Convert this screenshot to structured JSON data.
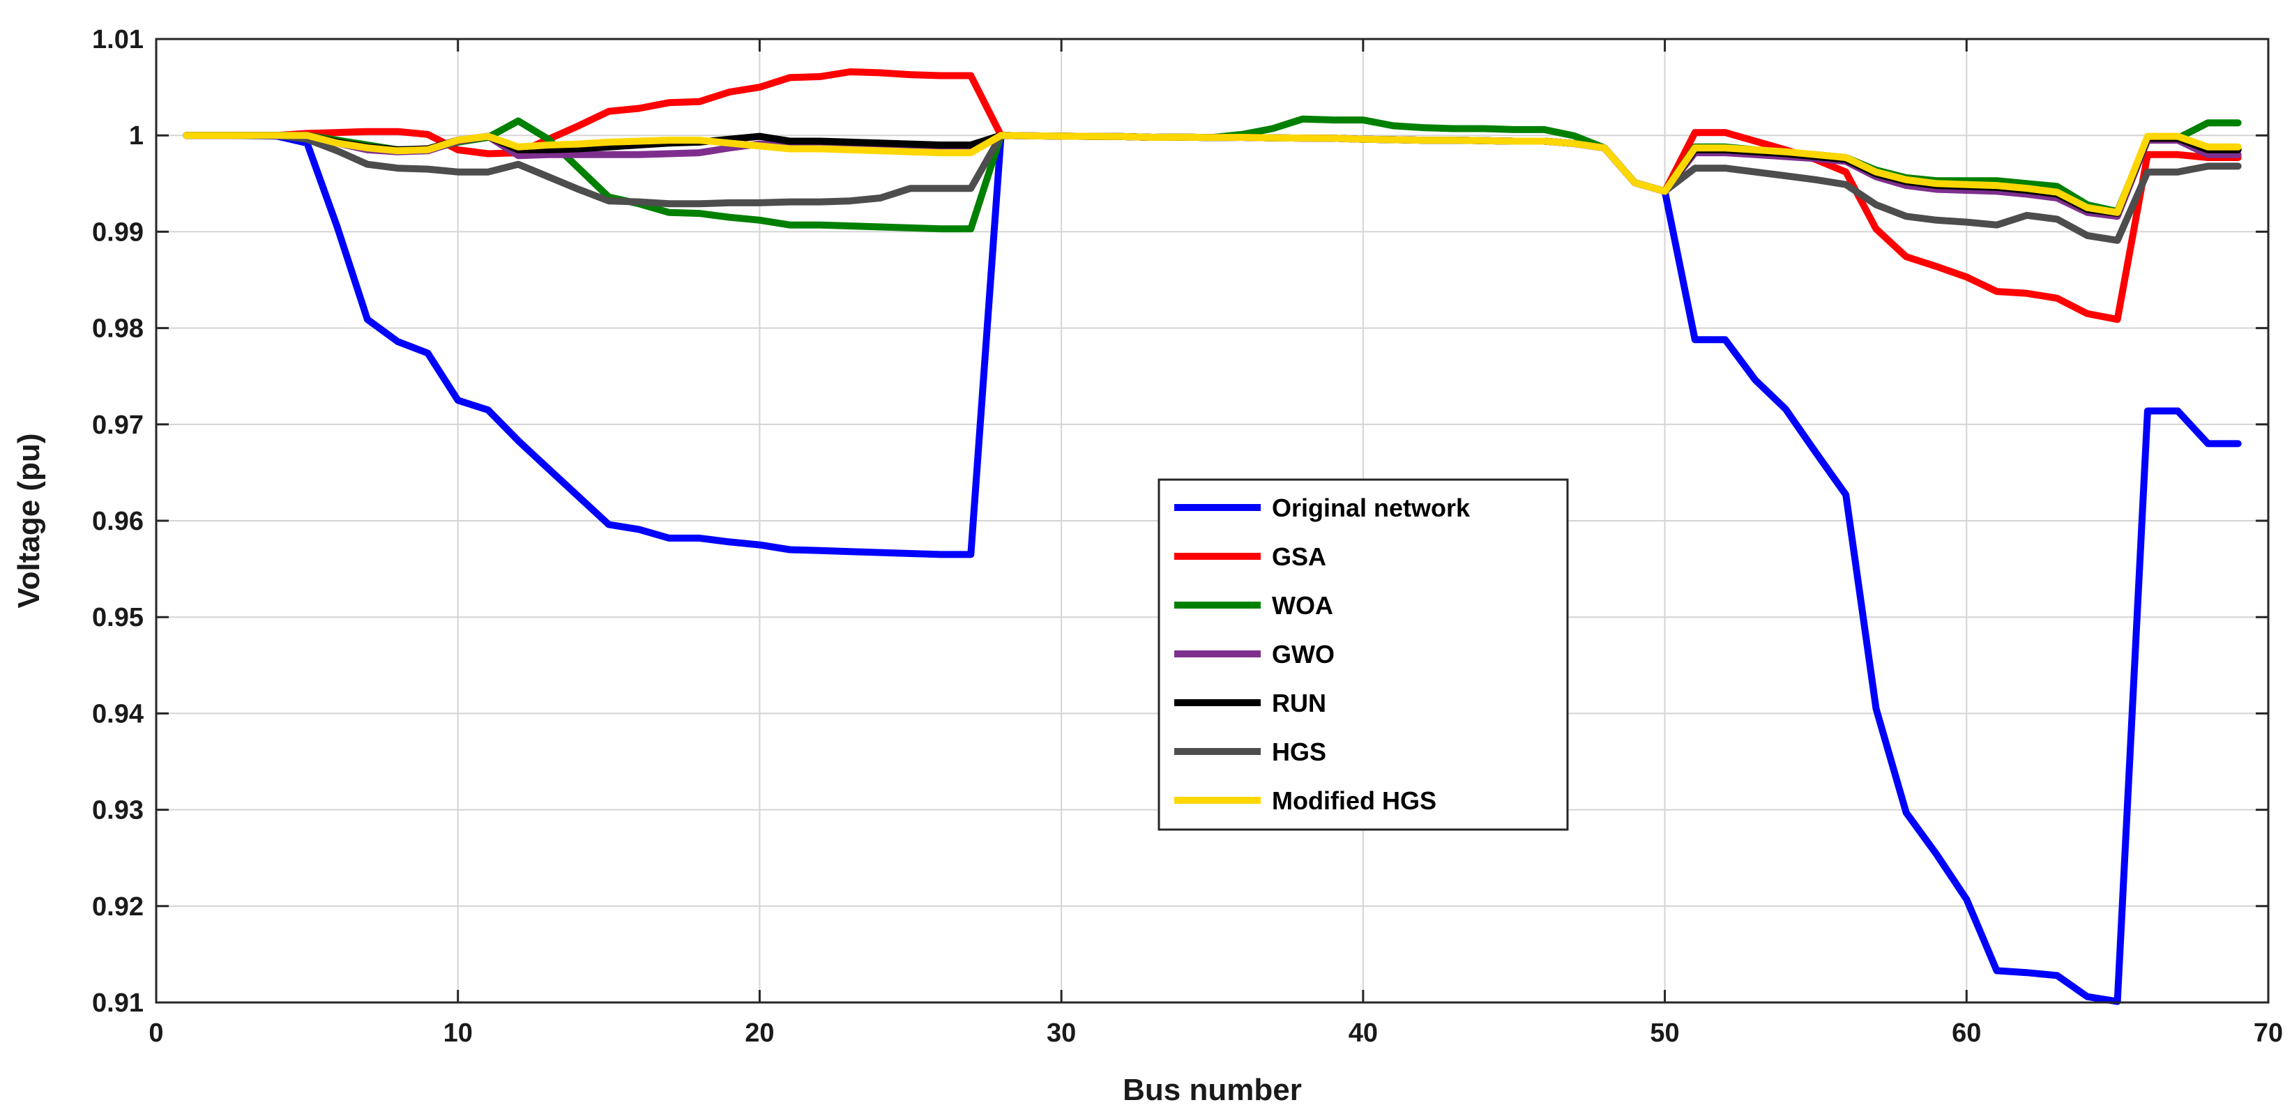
{
  "chart_data": {
    "type": "line",
    "title": "",
    "xlabel": "Bus number",
    "ylabel": "Voltage (pu)",
    "xlim": [
      0,
      70
    ],
    "ylim": [
      0.91,
      1.01
    ],
    "xticks": [
      0,
      10,
      20,
      30,
      40,
      50,
      60,
      70
    ],
    "yticks": [
      0.91,
      0.92,
      0.93,
      0.94,
      0.95,
      0.96,
      0.97,
      0.98,
      0.99,
      1.0,
      1.01
    ],
    "xtick_labels": [
      "0",
      "10",
      "20",
      "30",
      "40",
      "50",
      "60",
      "70"
    ],
    "ytick_labels": [
      "0.91",
      "0.92",
      "0.93",
      "0.94",
      "0.95",
      "0.96",
      "0.97",
      "0.98",
      "0.99",
      "1",
      "1.01"
    ],
    "grid": true,
    "legend_position": "center-right",
    "x": [
      1,
      2,
      3,
      4,
      5,
      6,
      7,
      8,
      9,
      10,
      11,
      12,
      13,
      14,
      15,
      16,
      17,
      18,
      19,
      20,
      21,
      22,
      23,
      24,
      25,
      26,
      27,
      28,
      29,
      30,
      31,
      32,
      33,
      34,
      35,
      36,
      37,
      38,
      39,
      40,
      41,
      42,
      43,
      44,
      45,
      46,
      47,
      48,
      49,
      50,
      51,
      52,
      53,
      54,
      55,
      56,
      57,
      58,
      59,
      60,
      61,
      62,
      63,
      64,
      65,
      66,
      67,
      68,
      69
    ],
    "series": [
      {
        "name": "Original network",
        "color": "#0000FF",
        "values": [
          1.0,
          1.0,
          0.99997,
          0.99993,
          0.9992,
          0.9905,
          0.9809,
          0.9786,
          0.9774,
          0.9725,
          0.9715,
          0.9683,
          0.9654,
          0.9625,
          0.9596,
          0.9591,
          0.9582,
          0.9582,
          0.9578,
          0.9575,
          0.957,
          0.9569,
          0.9568,
          0.9567,
          0.9566,
          0.9565,
          0.9565,
          0.99998,
          0.99995,
          0.99992,
          0.9999,
          0.99988,
          0.9998,
          0.99982,
          0.99978,
          0.9998,
          0.99975,
          0.99972,
          0.9997,
          0.9996,
          0.99955,
          0.9995,
          0.9995,
          0.99945,
          0.9994,
          0.9994,
          0.99915,
          0.9987,
          0.9951,
          0.9942,
          0.9788,
          0.9788,
          0.9746,
          0.9716,
          0.9671,
          0.9627,
          0.9405,
          0.9297,
          0.9254,
          0.9207,
          0.9133,
          0.9131,
          0.9128,
          0.9106,
          0.9101,
          0.9714,
          0.9714,
          0.968,
          0.968
        ]
      },
      {
        "name": "GSA",
        "color": "#FF0000",
        "values": [
          1.0,
          1.0,
          1.0,
          1.0,
          1.0002,
          1.0003,
          1.0004,
          1.0004,
          1.0001,
          0.9985,
          0.9981,
          0.9982,
          0.9996,
          1.001,
          1.0025,
          1.0028,
          1.0034,
          1.0035,
          1.0045,
          1.005,
          1.006,
          1.0061,
          1.0066,
          1.0065,
          1.0063,
          1.0062,
          1.0062,
          1.0,
          0.99995,
          0.99992,
          0.9999,
          0.99988,
          0.9998,
          0.99982,
          0.99978,
          0.9998,
          0.99975,
          0.99972,
          0.9997,
          0.9996,
          0.99955,
          0.9995,
          0.9995,
          0.99945,
          0.9994,
          0.9994,
          0.99915,
          0.9987,
          0.9951,
          0.9942,
          1.0003,
          1.0003,
          0.9994,
          0.9985,
          0.9975,
          0.9962,
          0.9903,
          0.9874,
          0.9864,
          0.9853,
          0.9838,
          0.9836,
          0.9831,
          0.9815,
          0.9809,
          0.998,
          0.998,
          0.9977,
          0.9977
        ]
      },
      {
        "name": "WOA",
        "color": "#008000",
        "values": [
          1.0,
          1.0,
          1.0,
          1.0,
          1.0,
          0.9995,
          0.999,
          0.9985,
          0.9985,
          0.9993,
          0.9998,
          1.0015,
          0.9996,
          0.9966,
          0.9936,
          0.9929,
          0.992,
          0.9919,
          0.9915,
          0.9912,
          0.9907,
          0.9907,
          0.9906,
          0.9905,
          0.9904,
          0.9903,
          0.9903,
          1.0,
          0.99995,
          0.99992,
          0.9999,
          0.99988,
          0.9998,
          0.99982,
          0.99978,
          1.0001,
          1.0007,
          1.0017,
          1.0016,
          1.0016,
          1.001,
          1.0008,
          1.0007,
          1.0007,
          1.0006,
          1.0006,
          0.99995,
          0.9987,
          0.9951,
          0.9942,
          0.9988,
          0.9988,
          0.9985,
          0.9982,
          0.998,
          0.9977,
          0.9964,
          0.9956,
          0.9953,
          0.9953,
          0.9953,
          0.995,
          0.9947,
          0.9928,
          0.9921,
          0.9997,
          0.9997,
          1.0013,
          1.0013
        ]
      },
      {
        "name": "GWO",
        "color": "#7E2F8E",
        "values": [
          1.0,
          1.0,
          1.0,
          1.0,
          1.0,
          0.9992,
          0.9985,
          0.9983,
          0.9984,
          0.9994,
          0.9999,
          0.9979,
          0.998,
          0.998,
          0.998,
          0.998,
          0.9981,
          0.9982,
          0.9987,
          0.9991,
          0.999,
          0.9989,
          0.9989,
          0.9988,
          0.9987,
          0.9986,
          0.9986,
          1.0,
          0.99995,
          0.99992,
          0.9999,
          0.99988,
          0.9998,
          0.99982,
          0.99978,
          0.9998,
          0.99975,
          0.99972,
          0.9997,
          0.9996,
          0.99955,
          0.9995,
          0.9995,
          0.99945,
          0.9994,
          0.9994,
          0.99915,
          0.9987,
          0.9951,
          0.9942,
          0.9982,
          0.9982,
          0.998,
          0.9978,
          0.9976,
          0.9973,
          0.9957,
          0.9948,
          0.9944,
          0.9943,
          0.9942,
          0.9939,
          0.9935,
          0.992,
          0.9916,
          0.9995,
          0.9995,
          0.998,
          0.998
        ]
      },
      {
        "name": "RUN",
        "color": "#000000",
        "values": [
          1.0,
          1.0,
          1.0,
          1.0,
          1.0,
          0.9993,
          0.9988,
          0.9985,
          0.9986,
          0.9995,
          0.9999,
          0.9985,
          0.9985,
          0.9986,
          0.9988,
          0.999,
          0.9992,
          0.9993,
          0.9996,
          0.9999,
          0.9994,
          0.9994,
          0.9993,
          0.9992,
          0.9991,
          0.999,
          0.999,
          1.0,
          0.99995,
          0.99992,
          0.9999,
          0.99988,
          0.9998,
          0.99982,
          0.99978,
          0.9998,
          0.99975,
          0.99972,
          0.9997,
          0.9996,
          0.99955,
          0.9995,
          0.9995,
          0.99945,
          0.9994,
          0.9994,
          0.99915,
          0.9987,
          0.9951,
          0.9942,
          0.9985,
          0.9985,
          0.9983,
          0.9981,
          0.9978,
          0.9975,
          0.996,
          0.9952,
          0.9948,
          0.9947,
          0.9946,
          0.9943,
          0.9939,
          0.9923,
          0.9919,
          0.9997,
          0.9997,
          0.9985,
          0.9985
        ]
      },
      {
        "name": "HGS",
        "color": "#4D4D4D",
        "values": [
          1.0,
          1.0,
          1.0,
          1.0,
          0.9996,
          0.9984,
          0.997,
          0.9966,
          0.9965,
          0.9962,
          0.9962,
          0.997,
          0.9957,
          0.9944,
          0.9932,
          0.9931,
          0.9929,
          0.9929,
          0.993,
          0.993,
          0.9931,
          0.9931,
          0.9932,
          0.9935,
          0.9945,
          0.9945,
          0.9945,
          1.0,
          0.99995,
          0.99992,
          0.9999,
          0.99988,
          0.9998,
          0.99982,
          0.99978,
          0.9998,
          0.99975,
          0.99972,
          0.9997,
          0.9996,
          0.99955,
          0.9995,
          0.9995,
          0.99945,
          0.9994,
          0.9994,
          0.99915,
          0.9987,
          0.9951,
          0.9942,
          0.9966,
          0.9966,
          0.9962,
          0.9958,
          0.9954,
          0.9949,
          0.9928,
          0.9916,
          0.9912,
          0.991,
          0.9907,
          0.9917,
          0.9913,
          0.9896,
          0.9891,
          0.9962,
          0.9962,
          0.9968,
          0.9968
        ]
      },
      {
        "name": "Modified HGS",
        "color": "#FFD700",
        "values": [
          1.0,
          1.0,
          1.0,
          1.0,
          1.0,
          0.9992,
          0.9987,
          0.9984,
          0.9985,
          0.9995,
          0.9999,
          0.9988,
          0.999,
          0.9991,
          0.9993,
          0.9994,
          0.9995,
          0.9995,
          0.9992,
          0.9989,
          0.9986,
          0.9986,
          0.9985,
          0.9984,
          0.9983,
          0.9982,
          0.9982,
          1.0,
          0.99995,
          0.99992,
          0.9999,
          0.99988,
          0.9998,
          0.99982,
          0.99978,
          0.9998,
          0.99975,
          0.99972,
          0.9997,
          0.9996,
          0.99955,
          0.9995,
          0.9995,
          0.99945,
          0.9994,
          0.9994,
          0.99915,
          0.9987,
          0.9951,
          0.9942,
          0.9987,
          0.9987,
          0.9985,
          0.9983,
          0.998,
          0.9977,
          0.9962,
          0.9954,
          0.995,
          0.9949,
          0.9948,
          0.9945,
          0.9941,
          0.9925,
          0.992,
          0.9999,
          0.9999,
          0.9988,
          0.9988
        ]
      }
    ]
  }
}
